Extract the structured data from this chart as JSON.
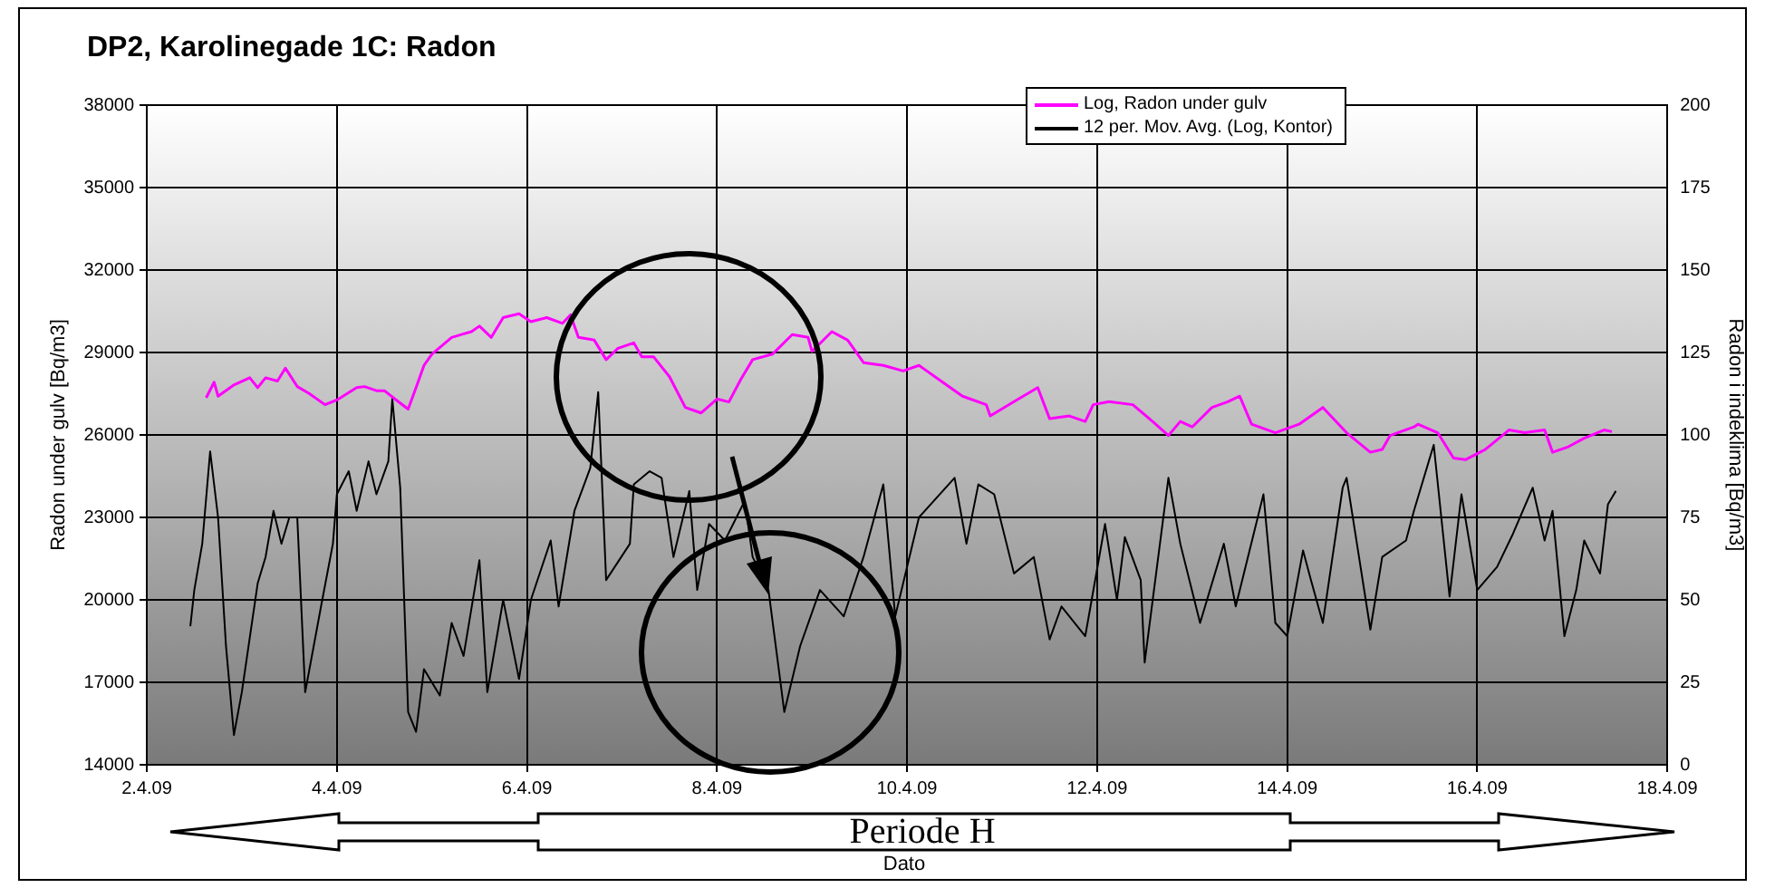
{
  "chart_data": {
    "type": "line",
    "title": "DP2, Karolinegade 1C: Radon",
    "xlabel": "Dato",
    "ylabel": "Radon under gulv [Bq/m3]",
    "y2label": "Radon i indeklima [Bq/m3]",
    "xlim": [
      "--04-02",
      "--04-18"
    ],
    "xticks": [
      {
        "value": "--04-02",
        "label": "2.4.09"
      },
      {
        "value": "--04-04",
        "label": "4.4.09"
      },
      {
        "value": "--04-06",
        "label": "6.4.09"
      },
      {
        "value": "--04-08",
        "label": "8.4.09"
      },
      {
        "value": "--04-10",
        "label": "10.4.09"
      },
      {
        "value": "--04-12",
        "label": "12.4.09"
      },
      {
        "value": "--04-14",
        "label": "14.4.09"
      },
      {
        "value": "--04-16",
        "label": "16.4.09"
      },
      {
        "value": "--04-18",
        "label": "18.4.09"
      }
    ],
    "ylim": [
      14000,
      38000
    ],
    "yticks": [
      14000,
      17000,
      20000,
      23000,
      26000,
      29000,
      32000,
      35000,
      38000
    ],
    "y2lim": [
      0,
      200
    ],
    "y2ticks": [
      0,
      25,
      50,
      75,
      100,
      125,
      150,
      175,
      200
    ],
    "grid": true,
    "legend": "top",
    "marker": "none",
    "line_style": "solid",
    "annotations": [
      "Periode H"
    ],
    "series": [
      {
        "name": "Log, Radon under gulv",
        "color": "#ff00ff",
        "axis": "y",
        "x": [
          "--04-02T15:00",
          "--04-02T17:00",
          "--04-02T18:00",
          "--04-02T22:00",
          "--04-03T02:00",
          "--04-03T04:00",
          "--04-03T06:00",
          "--04-03T09:00",
          "--04-03T11:00",
          "--04-03T14:00",
          "--04-03T17:00",
          "--04-03T21:00",
          "--04-04T00:00",
          "--04-04T05:00",
          "--04-04T07:00",
          "--04-04T10:00",
          "--04-04T12:00",
          "--04-04T15:00",
          "--04-04T18:00",
          "--04-04T20:00",
          "--04-04T22:00",
          "--04-05T00:00",
          "--04-05T05:00",
          "--04-05T10:00",
          "--04-05T12:00",
          "--04-05T15:00",
          "--04-05T18:00",
          "--04-05T22:00",
          "--04-06T01:00",
          "--04-06T05:00",
          "--04-06T09:00",
          "--04-06T11:00",
          "--04-06T13:00",
          "--04-06T17:00",
          "--04-06T20:00",
          "--04-06T23:00",
          "--04-07T03:00",
          "--04-07T05:00",
          "--04-07T08:00",
          "--04-07T12:00",
          "--04-07T16:00",
          "--04-07T20:00",
          "--04-08T00:00",
          "--04-08T03:00",
          "--04-08T06:00",
          "--04-08T09:00",
          "--04-08T14:00",
          "--04-08T19:00",
          "--04-08T23:00",
          "--04-09T00:00",
          "--04-09T05:00",
          "--04-09T09:00",
          "--04-09T13:00",
          "--04-09T18:00",
          "--04-09T23:00",
          "--04-10T03:00",
          "--04-10T08:00",
          "--04-10T14:00",
          "--04-10T20:00",
          "--04-10T21:00",
          "--04-11T03:00",
          "--04-11T09:00",
          "--04-11T12:00",
          "--04-11T17:00",
          "--04-11T21:00",
          "--04-11T23:00",
          "--04-12T03:00",
          "--04-12T09:00",
          "--04-12T14:00",
          "--04-12T18:00",
          "--04-12T21:00",
          "--04-13T00:00",
          "--04-13T05:00",
          "--04-13T09:00",
          "--04-13T12:00",
          "--04-13T15:00",
          "--04-13T21:00",
          "--04-14T03:00",
          "--04-14T09:00",
          "--04-14T15:00",
          "--04-14T21:00",
          "--04-15T00:00",
          "--04-15T02:00",
          "--04-15T08:00",
          "--04-15T09:00",
          "--04-15T14:00",
          "--04-15T18:00",
          "--04-15T21:00",
          "--04-16T02:00",
          "--04-16T08:00",
          "--04-16T12:00",
          "--04-16T17:00",
          "--04-16T19:00",
          "--04-16T23:00",
          "--04-17T03:00",
          "--04-17T08:00",
          "--04-17T10:00"
        ],
        "values": [
          27350,
          27920,
          27410,
          27820,
          28080,
          27720,
          28080,
          27960,
          28430,
          27760,
          27510,
          27100,
          27270,
          27720,
          27760,
          27610,
          27610,
          27270,
          26940,
          27720,
          28530,
          28940,
          29550,
          29760,
          29960,
          29550,
          30270,
          30410,
          30120,
          30270,
          30060,
          30370,
          29550,
          29450,
          28740,
          29150,
          29350,
          28840,
          28840,
          28120,
          27000,
          26800,
          27310,
          27200,
          28020,
          28740,
          28940,
          29650,
          29550,
          29040,
          29760,
          29450,
          28630,
          28530,
          28330,
          28530,
          28020,
          27410,
          27100,
          26690,
          27210,
          27720,
          26590,
          26690,
          26490,
          27100,
          27210,
          27100,
          26490,
          25980,
          26490,
          26290,
          27000,
          27210,
          27410,
          26390,
          26080,
          26390,
          27000,
          26080,
          25370,
          25470,
          25980,
          26290,
          26390,
          26080,
          25160,
          25100,
          25470,
          26180,
          26080,
          26180,
          25370,
          25570,
          25880,
          26180,
          26120
        ]
      },
      {
        "name": "12 per. Mov. Avg. (Log, Kontor)",
        "color": "#000000",
        "axis": "y2",
        "x": [
          "--04-02T11:00",
          "--04-02T12:00",
          "--04-02T14:00",
          "--04-02T16:00",
          "--04-02T18:00",
          "--04-02T20:00",
          "--04-02T22:00",
          "--04-03T00:00",
          "--04-03T04:00",
          "--04-03T06:00",
          "--04-03T08:00",
          "--04-03T10:00",
          "--04-03T12:00",
          "--04-03T14:00",
          "--04-03T16:00",
          "--04-03T20:00",
          "--04-03T23:00",
          "--04-04T00:00",
          "--04-04T03:00",
          "--04-04T05:00",
          "--04-04T08:00",
          "--04-04T10:00",
          "--04-04T13:00",
          "--04-04T14:00",
          "--04-04T16:00",
          "--04-04T18:00",
          "--04-04T20:00",
          "--04-04T22:00",
          "--04-05T02:00",
          "--04-05T05:00",
          "--04-05T08:00",
          "--04-05T12:00",
          "--04-05T14:00",
          "--04-05T18:00",
          "--04-05T22:00",
          "--04-06T01:00",
          "--04-06T06:00",
          "--04-06T08:00",
          "--04-06T12:00",
          "--04-06T16:00",
          "--04-06T18:00",
          "--04-06T20:00",
          "--04-07T02:00",
          "--04-07T03:00",
          "--04-07T07:00",
          "--04-07T10:00",
          "--04-07T13:00",
          "--04-07T17:00",
          "--04-07T19:00",
          "--04-07T22:00",
          "--04-08T02:00",
          "--04-08T07:00",
          "--04-08T09:00",
          "--04-08T13:00",
          "--04-08T17:00",
          "--04-08T21:00",
          "--04-09T02:00",
          "--04-09T08:00",
          "--04-09T13:00",
          "--04-09T18:00",
          "--04-09T21:00",
          "--04-10T03:00",
          "--04-10T12:00",
          "--04-10T15:00",
          "--04-10T18:00",
          "--04-10T22:00",
          "--04-11T03:00",
          "--04-11T08:00",
          "--04-11T12:00",
          "--04-11T15:00",
          "--04-11T21:00",
          "--04-12T02:00",
          "--04-12T05:00",
          "--04-12T07:00",
          "--04-12T11:00",
          "--04-12T12:00",
          "--04-12T18:00",
          "--04-12T21:00",
          "--04-13T02:00",
          "--04-13T08:00",
          "--04-13T11:00",
          "--04-13T18:00",
          "--04-13T21:00",
          "--04-14T00:00",
          "--04-14T04:00",
          "--04-14T06:00",
          "--04-14T09:00",
          "--04-14T14:00",
          "--04-14T15:00",
          "--04-14T21:00",
          "--04-15T00:00",
          "--04-15T06:00",
          "--04-15T08:00",
          "--04-15T13:00",
          "--04-15T17:00",
          "--04-15T20:00",
          "--04-16T00:00",
          "--04-16T05:00",
          "--04-16T09:00",
          "--04-16T14:00",
          "--04-16T17:00",
          "--04-16T19:00",
          "--04-16T22:00",
          "--04-17T01:00",
          "--04-17T03:00",
          "--04-17T07:00",
          "--04-17T09:00",
          "--04-17T11:00"
        ],
        "values": [
          42,
          53,
          67,
          95,
          75,
          36,
          9,
          22,
          55,
          63,
          77,
          67,
          75,
          75,
          22,
          48,
          67,
          82,
          89,
          77,
          92,
          82,
          92,
          111,
          84,
          16,
          10,
          29,
          21,
          43,
          33,
          62,
          22,
          50,
          26,
          50,
          68,
          48,
          77,
          90,
          113,
          56,
          67,
          85,
          89,
          87,
          63,
          83,
          53,
          73,
          68,
          80,
          63,
          53,
          16,
          36,
          53,
          45,
          63,
          85,
          45,
          75,
          87,
          67,
          85,
          82,
          58,
          63,
          38,
          48,
          39,
          73,
          50,
          69,
          56,
          31,
          87,
          67,
          43,
          67,
          48,
          82,
          43,
          39,
          65,
          56,
          43,
          84,
          87,
          41,
          63,
          68,
          77,
          97,
          51,
          82,
          53,
          60,
          70,
          84,
          68,
          77,
          39,
          53,
          68,
          58,
          79,
          83
        ]
      }
    ]
  }
}
